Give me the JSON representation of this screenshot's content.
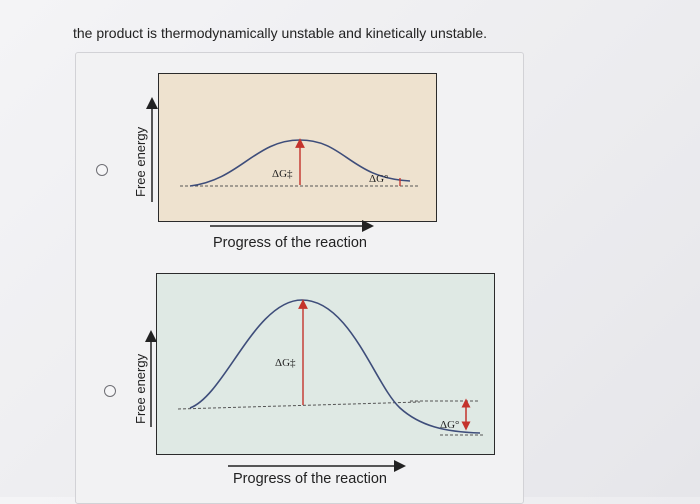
{
  "question": {
    "text": "the product is thermodynamically unstable and kinetically unstable."
  },
  "options": [
    {
      "ylabel": "Free energy",
      "xlabel": "Progress of the reaction",
      "activation_label": "ΔG‡",
      "delta_label": "ΔG°",
      "panel_color": "#eee2cf"
    },
    {
      "ylabel": "Free energy",
      "xlabel": "Progress of the reaction",
      "activation_label": "ΔG‡",
      "delta_label": "ΔG°",
      "panel_color": "#dfe9e4"
    }
  ],
  "colors": {
    "curve": "#3e4d7a",
    "arrow": "#c4332c",
    "text": "#222222"
  }
}
